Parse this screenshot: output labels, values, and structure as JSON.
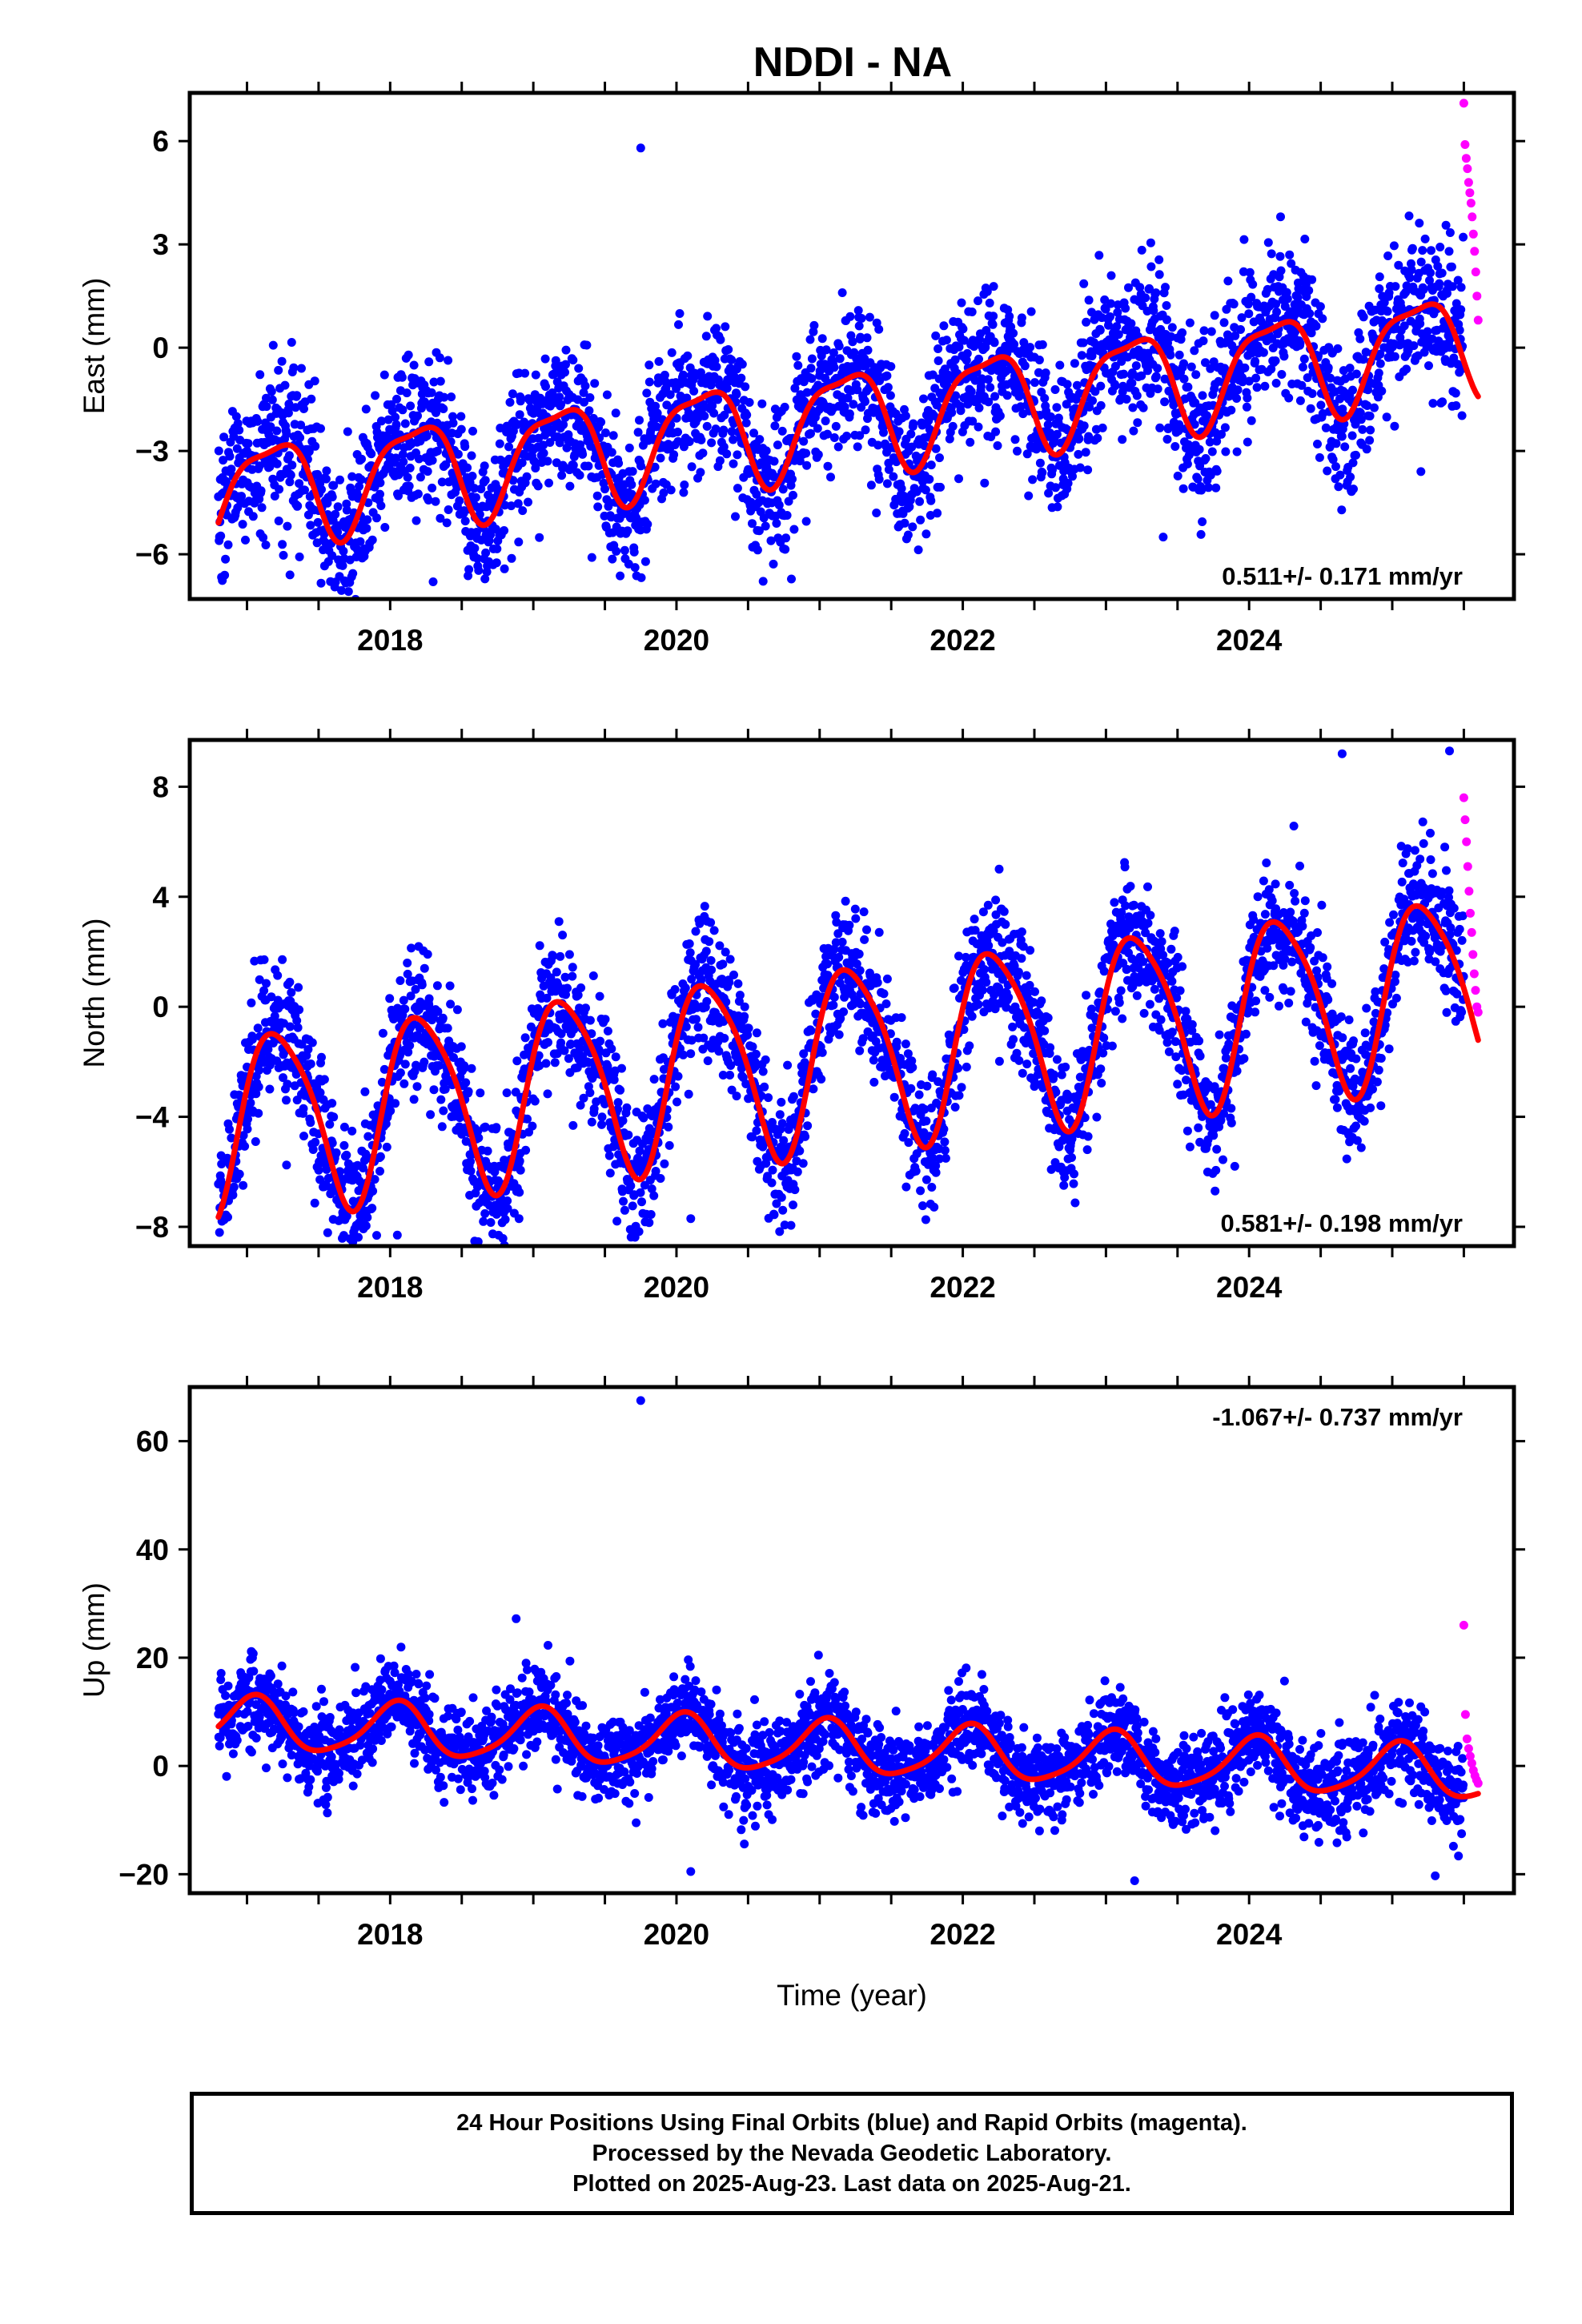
{
  "title": "NDDI - NA",
  "colors": {
    "final": "#0000ff",
    "rapid": "#ff00ff",
    "model": "#ff0000"
  },
  "chart_data": [
    {
      "type": "scatter",
      "ylabel": "East (mm)",
      "xlabel": "",
      "xlim": [
        2016.6,
        2025.85
      ],
      "ylim": [
        -7.3,
        7.4
      ],
      "yticks": [
        {
          "v": -6,
          "label": "−6"
        },
        {
          "v": -3,
          "label": "−3"
        },
        {
          "v": 0,
          "label": "0"
        },
        {
          "v": 3,
          "label": "3"
        },
        {
          "v": 6,
          "label": "6"
        }
      ],
      "xticks": [
        {
          "v": 2018,
          "label": "2018"
        },
        {
          "v": 2020,
          "label": "2020"
        },
        {
          "v": 2022,
          "label": "2022"
        },
        {
          "v": 2024,
          "label": "2024"
        }
      ],
      "rate_label": "0.511+/- 0.171 mm/yr",
      "rate_pos": "bottom-right",
      "model": {
        "x0": 2016.8,
        "x1": 2025.6,
        "offset": -2.1,
        "trend": 0.511,
        "annual_amp": 1.45,
        "annual_phase": 0.5,
        "semi_amp": 0.42,
        "semi_phase": 2.9
      },
      "series": [
        {
          "color_key": "final",
          "x_start": 2016.8,
          "x_end": 2025.5,
          "noise": 1.1,
          "outliers": [
            [
              2019.75,
              5.8
            ],
            [
              2018.3,
              -6.8
            ],
            [
              2017.3,
              -6.6
            ],
            [
              2023.4,
              -5.5
            ],
            [
              2025.2,
              -3.6
            ]
          ]
        },
        {
          "color_key": "rapid",
          "x_start": 2025.5,
          "x_end": 2025.6,
          "values_y": [
            7.1,
            5.9,
            5.5,
            5.2,
            4.8,
            4.5,
            4.2,
            3.8,
            3.3,
            2.8,
            2.2,
            1.5,
            0.8
          ]
        }
      ]
    },
    {
      "type": "scatter",
      "ylabel": "North (mm)",
      "xlabel": "",
      "xlim": [
        2016.6,
        2025.85
      ],
      "ylim": [
        -8.7,
        9.7
      ],
      "yticks": [
        {
          "v": -8,
          "label": "−8"
        },
        {
          "v": -4,
          "label": "−4"
        },
        {
          "v": 0,
          "label": "0"
        },
        {
          "v": 4,
          "label": "4"
        },
        {
          "v": 8,
          "label": "8"
        }
      ],
      "xticks": [
        {
          "v": 2018,
          "label": "2018"
        },
        {
          "v": 2020,
          "label": "2020"
        },
        {
          "v": 2022,
          "label": "2022"
        },
        {
          "v": 2024,
          "label": "2024"
        }
      ],
      "rate_label": "0.581+/- 0.198 mm/yr",
      "rate_pos": "bottom-right",
      "model": {
        "x0": 2016.8,
        "x1": 2025.6,
        "offset": -1.8,
        "trend": 0.581,
        "annual_amp": 3.3,
        "annual_phase": 0.2,
        "semi_amp": 0.55,
        "semi_phase": 1.2
      },
      "series": [
        {
          "color_key": "final",
          "x_start": 2016.8,
          "x_end": 2025.5,
          "noise": 1.2,
          "outliers": [
            [
              2018.05,
              -8.3
            ],
            [
              2020.1,
              -7.7
            ],
            [
              2018.9,
              -7.7
            ],
            [
              2024.65,
              9.2
            ],
            [
              2025.4,
              9.3
            ],
            [
              2023.9,
              -5.8
            ]
          ]
        },
        {
          "color_key": "rapid",
          "x_start": 2025.5,
          "x_end": 2025.6,
          "values_y": [
            7.6,
            6.8,
            6.0,
            5.1,
            4.2,
            3.4,
            2.7,
            1.9,
            1.2,
            0.6,
            0.0,
            -0.2
          ]
        }
      ]
    },
    {
      "type": "scatter",
      "ylabel": "Up (mm)",
      "xlabel": "Time (year)",
      "xlim": [
        2016.6,
        2025.85
      ],
      "ylim": [
        -23.5,
        70
      ],
      "yticks": [
        {
          "v": -20,
          "label": "−20"
        },
        {
          "v": 0,
          "label": "0"
        },
        {
          "v": 20,
          "label": "20"
        },
        {
          "v": 40,
          "label": "40"
        },
        {
          "v": 60,
          "label": "60"
        }
      ],
      "xticks": [
        {
          "v": 2018,
          "label": "2018"
        },
        {
          "v": 2020,
          "label": "2020"
        },
        {
          "v": 2022,
          "label": "2022"
        },
        {
          "v": 2024,
          "label": "2024"
        }
      ],
      "rate_label": "-1.067+/- 0.737 mm/yr",
      "rate_pos": "top-right",
      "model": {
        "x0": 2016.8,
        "x1": 2025.6,
        "offset": 3.4,
        "trend": -1.067,
        "annual_amp": 4.8,
        "annual_phase": 1.3,
        "semi_amp": 0.9,
        "semi_phase": 0.4
      },
      "series": [
        {
          "color_key": "final",
          "x_start": 2016.8,
          "x_end": 2025.5,
          "noise": 4.0,
          "outliers": [
            [
              2019.75,
              67.5
            ],
            [
              2018.88,
              27.2
            ],
            [
              2023.2,
              -21.2
            ],
            [
              2025.3,
              -20.3
            ],
            [
              2020.1,
              -19.5
            ]
          ]
        },
        {
          "color_key": "rapid",
          "x_start": 2025.5,
          "x_end": 2025.6,
          "values_y": [
            26.0,
            9.5,
            5.0,
            3.2,
            1.8,
            0.5,
            -0.8,
            -1.8,
            -2.6,
            -3.2
          ]
        }
      ]
    }
  ],
  "footer": {
    "line1": "24 Hour Positions Using Final Orbits (blue) and Rapid Orbits (magenta).",
    "line2": "Processed by the Nevada Geodetic Laboratory.",
    "line3": "Plotted on 2025-Aug-23. Last data on 2025-Aug-21."
  }
}
